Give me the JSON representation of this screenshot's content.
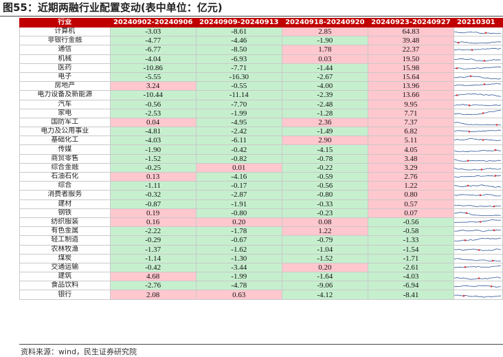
{
  "title": "图55：近期两融行业配置变动(表中单位：亿元)",
  "source": "资料来源：wind，民生证券研究院",
  "colors": {
    "header_bg": "#c00000",
    "positive_bg": "#ffc7ce",
    "negative_bg": "#c6efce",
    "spark_line": "#2e5597",
    "spark_marker": "#e03030"
  },
  "headers": [
    "行业",
    "20240902-20240906",
    "20240909-20240913",
    "20240918-20240920",
    "20240923-20240927",
    "20210301"
  ],
  "rows": [
    {
      "name": "计算机",
      "values": [
        "-3.03",
        "-8.61",
        "2.85",
        "64.83"
      ]
    },
    {
      "name": "非银行金融",
      "values": [
        "-4.77",
        "-4.46",
        "-1.90",
        "39.48"
      ]
    },
    {
      "name": "通信",
      "values": [
        "-6.77",
        "-8.50",
        "1.78",
        "22.37"
      ]
    },
    {
      "name": "机械",
      "values": [
        "-4.04",
        "-6.93",
        "0.03",
        "19.50"
      ]
    },
    {
      "name": "医药",
      "values": [
        "-10.86",
        "-7.71",
        "-1.44",
        "15.98"
      ]
    },
    {
      "name": "电子",
      "values": [
        "-5.55",
        "-16.30",
        "-2.67",
        "15.64"
      ]
    },
    {
      "name": "房地产",
      "values": [
        "3.24",
        "-0.55",
        "-4.00",
        "13.96"
      ]
    },
    {
      "name": "电力设备及新能源",
      "values": [
        "-10.44",
        "-11.14",
        "-2.39",
        "13.66"
      ]
    },
    {
      "name": "汽车",
      "values": [
        "-0.56",
        "-7.70",
        "-2.48",
        "9.95"
      ]
    },
    {
      "name": "家电",
      "values": [
        "-2.53",
        "-1.99",
        "-1.28",
        "7.71"
      ]
    },
    {
      "name": "国防军工",
      "values": [
        "0.04",
        "-4.95",
        "2.36",
        "7.37"
      ]
    },
    {
      "name": "电力及公用事业",
      "values": [
        "-4.81",
        "-2.42",
        "-1.49",
        "6.82"
      ]
    },
    {
      "name": "基础化工",
      "values": [
        "-4.03",
        "-6.11",
        "2.90",
        "5.11"
      ]
    },
    {
      "name": "传媒",
      "values": [
        "-1.90",
        "-0.42",
        "-4.15",
        "4.05"
      ]
    },
    {
      "name": "商贸零售",
      "values": [
        "-1.52",
        "-0.82",
        "-0.78",
        "3.48"
      ]
    },
    {
      "name": "综合金融",
      "values": [
        "-0.25",
        "0.01",
        "-0.22",
        "3.29"
      ]
    },
    {
      "name": "石油石化",
      "values": [
        "0.13",
        "-4.16",
        "-0.59",
        "2.76"
      ]
    },
    {
      "name": "综合",
      "values": [
        "-1.11",
        "-0.17",
        "-0.56",
        "1.22"
      ]
    },
    {
      "name": "消费者服务",
      "values": [
        "-0.32",
        "-2.87",
        "-0.80",
        "0.80"
      ]
    },
    {
      "name": "建材",
      "values": [
        "-0.87",
        "-1.91",
        "-0.33",
        "0.57"
      ]
    },
    {
      "name": "钢铁",
      "values": [
        "0.19",
        "-0.80",
        "-0.23",
        "0.07"
      ]
    },
    {
      "name": "纺织服装",
      "values": [
        "0.16",
        "0.20",
        "0.08",
        "-0.56"
      ]
    },
    {
      "name": "有色金属",
      "values": [
        "-2.22",
        "-1.78",
        "1.22",
        "-0.58"
      ]
    },
    {
      "name": "轻工制造",
      "values": [
        "-0.29",
        "-0.67",
        "-0.79",
        "-1.33"
      ]
    },
    {
      "name": "农林牧渔",
      "values": [
        "-1.37",
        "-1.62",
        "-1.04",
        "-1.54"
      ]
    },
    {
      "name": "煤炭",
      "values": [
        "-1.14",
        "-1.30",
        "-1.52",
        "-1.71"
      ]
    },
    {
      "name": "交通运输",
      "values": [
        "-0.42",
        "-3.44",
        "0.20",
        "-2.61"
      ]
    },
    {
      "name": "建筑",
      "values": [
        "4.68",
        "-1.99",
        "-1.64",
        "-4.03"
      ]
    },
    {
      "name": "食品饮料",
      "values": [
        "-2.76",
        "-4.78",
        "-9.06",
        "-6.94"
      ]
    },
    {
      "name": "银行",
      "values": [
        "2.08",
        "0.63",
        "-4.12",
        "-8.41"
      ]
    }
  ]
}
